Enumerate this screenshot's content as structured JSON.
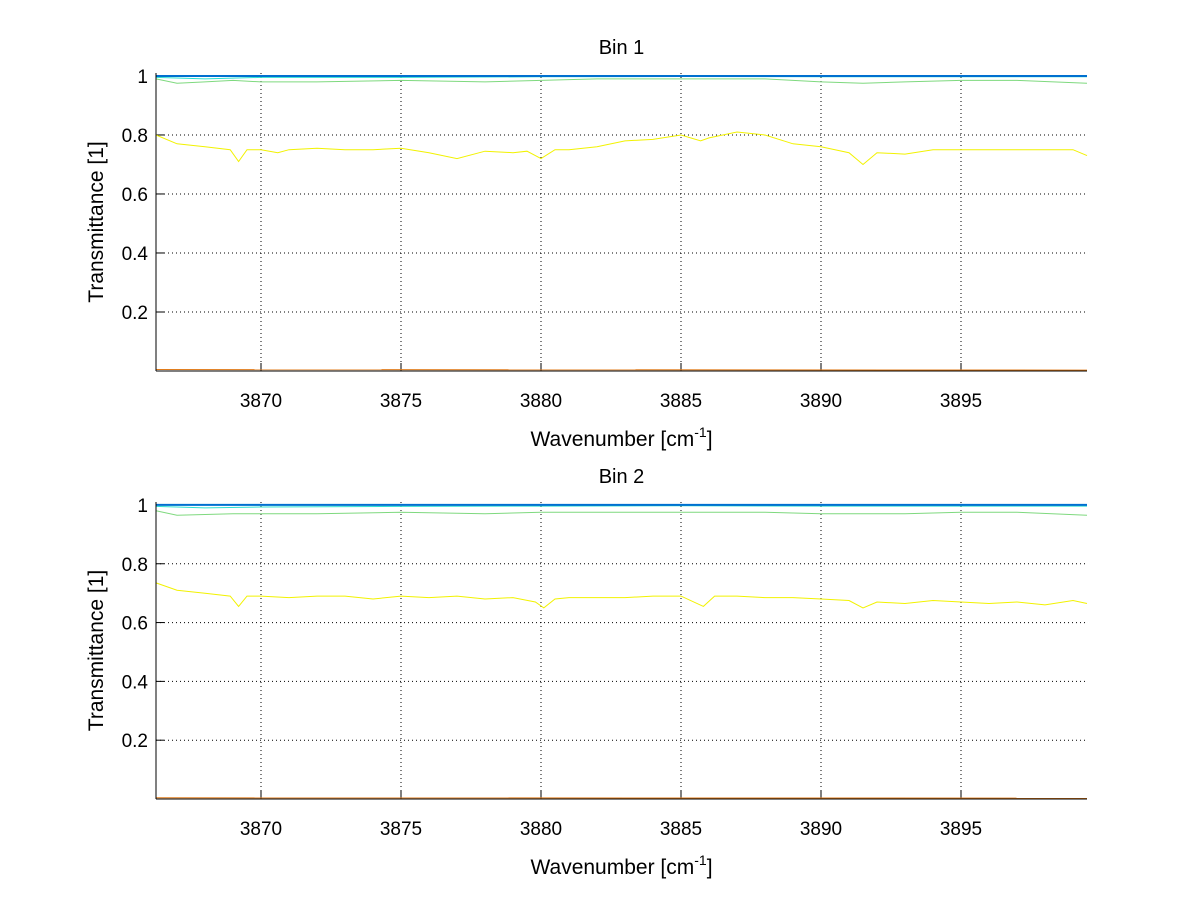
{
  "chart_data": [
    {
      "type": "line",
      "title": "Bin 1",
      "xlabel": "Wavenumber [cm",
      "xlabel_sup": "-1",
      "xlabel_end": "]",
      "ylabel": "Transmittance [1]",
      "xlim": [
        3866.25,
        3899.5
      ],
      "ylim": [
        0,
        1.01
      ],
      "xticks": [
        "3870",
        "3875",
        "3880",
        "3885",
        "3890",
        "3895"
      ],
      "yticks": [
        "0.2",
        "0.4",
        "0.6",
        "0.8",
        "1"
      ],
      "grid": true,
      "series": [
        {
          "name": "orange",
          "color": "#e07b1a",
          "x": [
            3866.25,
            3899.5
          ],
          "y": [
            0.005,
            0.003
          ]
        },
        {
          "name": "yellow",
          "color": "#f2f200",
          "x": [
            3866.25,
            3867,
            3868,
            3868.9,
            3869.2,
            3869.5,
            3870,
            3870.6,
            3871,
            3872,
            3873,
            3874,
            3875,
            3876,
            3877,
            3878,
            3879,
            3879.5,
            3880,
            3880.5,
            3881,
            3882,
            3883,
            3884,
            3885,
            3885.7,
            3886,
            3887,
            3888,
            3889,
            3890,
            3891,
            3891.5,
            3892,
            3893,
            3894,
            3895,
            3896,
            3897,
            3898,
            3899,
            3899.5
          ],
          "y": [
            0.8,
            0.77,
            0.76,
            0.75,
            0.71,
            0.75,
            0.75,
            0.74,
            0.75,
            0.755,
            0.75,
            0.75,
            0.755,
            0.74,
            0.72,
            0.745,
            0.74,
            0.745,
            0.72,
            0.75,
            0.75,
            0.76,
            0.78,
            0.785,
            0.8,
            0.78,
            0.79,
            0.81,
            0.8,
            0.77,
            0.76,
            0.74,
            0.7,
            0.74,
            0.735,
            0.75,
            0.75,
            0.75,
            0.75,
            0.75,
            0.75,
            0.73
          ]
        },
        {
          "name": "green",
          "color": "#7fd97f",
          "x": [
            3866.25,
            3867,
            3868,
            3869,
            3870,
            3872,
            3875,
            3878,
            3880,
            3882,
            3885,
            3888,
            3890,
            3891.5,
            3893,
            3895,
            3897,
            3899.5
          ],
          "y": [
            0.99,
            0.975,
            0.98,
            0.985,
            0.98,
            0.98,
            0.985,
            0.98,
            0.985,
            0.99,
            0.99,
            0.99,
            0.98,
            0.975,
            0.98,
            0.985,
            0.985,
            0.975
          ]
        },
        {
          "name": "cyan",
          "color": "#2fe0d0",
          "x": [
            3866.25,
            3868,
            3870,
            3875,
            3880,
            3885,
            3890,
            3895,
            3899.5
          ],
          "y": [
            0.995,
            0.99,
            0.995,
            0.995,
            0.997,
            0.998,
            0.997,
            0.997,
            0.997
          ]
        },
        {
          "name": "blue",
          "color": "#0070d0",
          "x": [
            3866.25,
            3899.5
          ],
          "y": [
            1.0,
            1.0
          ]
        }
      ]
    },
    {
      "type": "line",
      "title": "Bin 2",
      "xlabel": "Wavenumber [cm",
      "xlabel_sup": "-1",
      "xlabel_end": "]",
      "ylabel": "Transmittance [1]",
      "xlim": [
        3866.25,
        3899.5
      ],
      "ylim": [
        0,
        1.01
      ],
      "xticks": [
        "3870",
        "3875",
        "3880",
        "3885",
        "3890",
        "3895"
      ],
      "yticks": [
        "0.2",
        "0.4",
        "0.6",
        "0.8",
        "1"
      ],
      "grid": true,
      "series": [
        {
          "name": "orange",
          "color": "#e07b1a",
          "x": [
            3866.25,
            3899.5
          ],
          "y": [
            0.004,
            0.003
          ]
        },
        {
          "name": "yellow",
          "color": "#f2f200",
          "x": [
            3866.25,
            3867,
            3868,
            3868.9,
            3869.2,
            3869.5,
            3870,
            3871,
            3872,
            3873,
            3874,
            3875,
            3876,
            3877,
            3878,
            3879,
            3879.8,
            3880.1,
            3880.5,
            3881,
            3882,
            3883,
            3884,
            3885,
            3885.8,
            3886.2,
            3887,
            3888,
            3889,
            3890,
            3891,
            3891.5,
            3892,
            3893,
            3894,
            3895,
            3896,
            3897,
            3898,
            3899,
            3899.5
          ],
          "y": [
            0.735,
            0.71,
            0.7,
            0.69,
            0.655,
            0.69,
            0.69,
            0.685,
            0.69,
            0.69,
            0.68,
            0.69,
            0.685,
            0.69,
            0.68,
            0.685,
            0.67,
            0.65,
            0.68,
            0.685,
            0.685,
            0.685,
            0.69,
            0.69,
            0.655,
            0.69,
            0.69,
            0.685,
            0.685,
            0.68,
            0.675,
            0.65,
            0.67,
            0.665,
            0.675,
            0.67,
            0.665,
            0.67,
            0.66,
            0.675,
            0.665
          ]
        },
        {
          "name": "green",
          "color": "#7fd97f",
          "x": [
            3866.25,
            3867,
            3869,
            3872,
            3875,
            3878,
            3880,
            3883,
            3885,
            3888,
            3890,
            3893,
            3895,
            3897,
            3899.5
          ],
          "y": [
            0.98,
            0.965,
            0.97,
            0.97,
            0.975,
            0.97,
            0.975,
            0.975,
            0.975,
            0.975,
            0.97,
            0.97,
            0.975,
            0.975,
            0.965
          ]
        },
        {
          "name": "cyan",
          "color": "#2fe0d0",
          "x": [
            3866.25,
            3868,
            3870,
            3875,
            3880,
            3885,
            3890,
            3895,
            3899.5
          ],
          "y": [
            0.995,
            0.99,
            0.993,
            0.995,
            0.996,
            0.997,
            0.996,
            0.996,
            0.996
          ]
        },
        {
          "name": "blue",
          "color": "#0070d0",
          "x": [
            3866.25,
            3899.5
          ],
          "y": [
            1.0,
            1.0
          ]
        }
      ]
    }
  ]
}
